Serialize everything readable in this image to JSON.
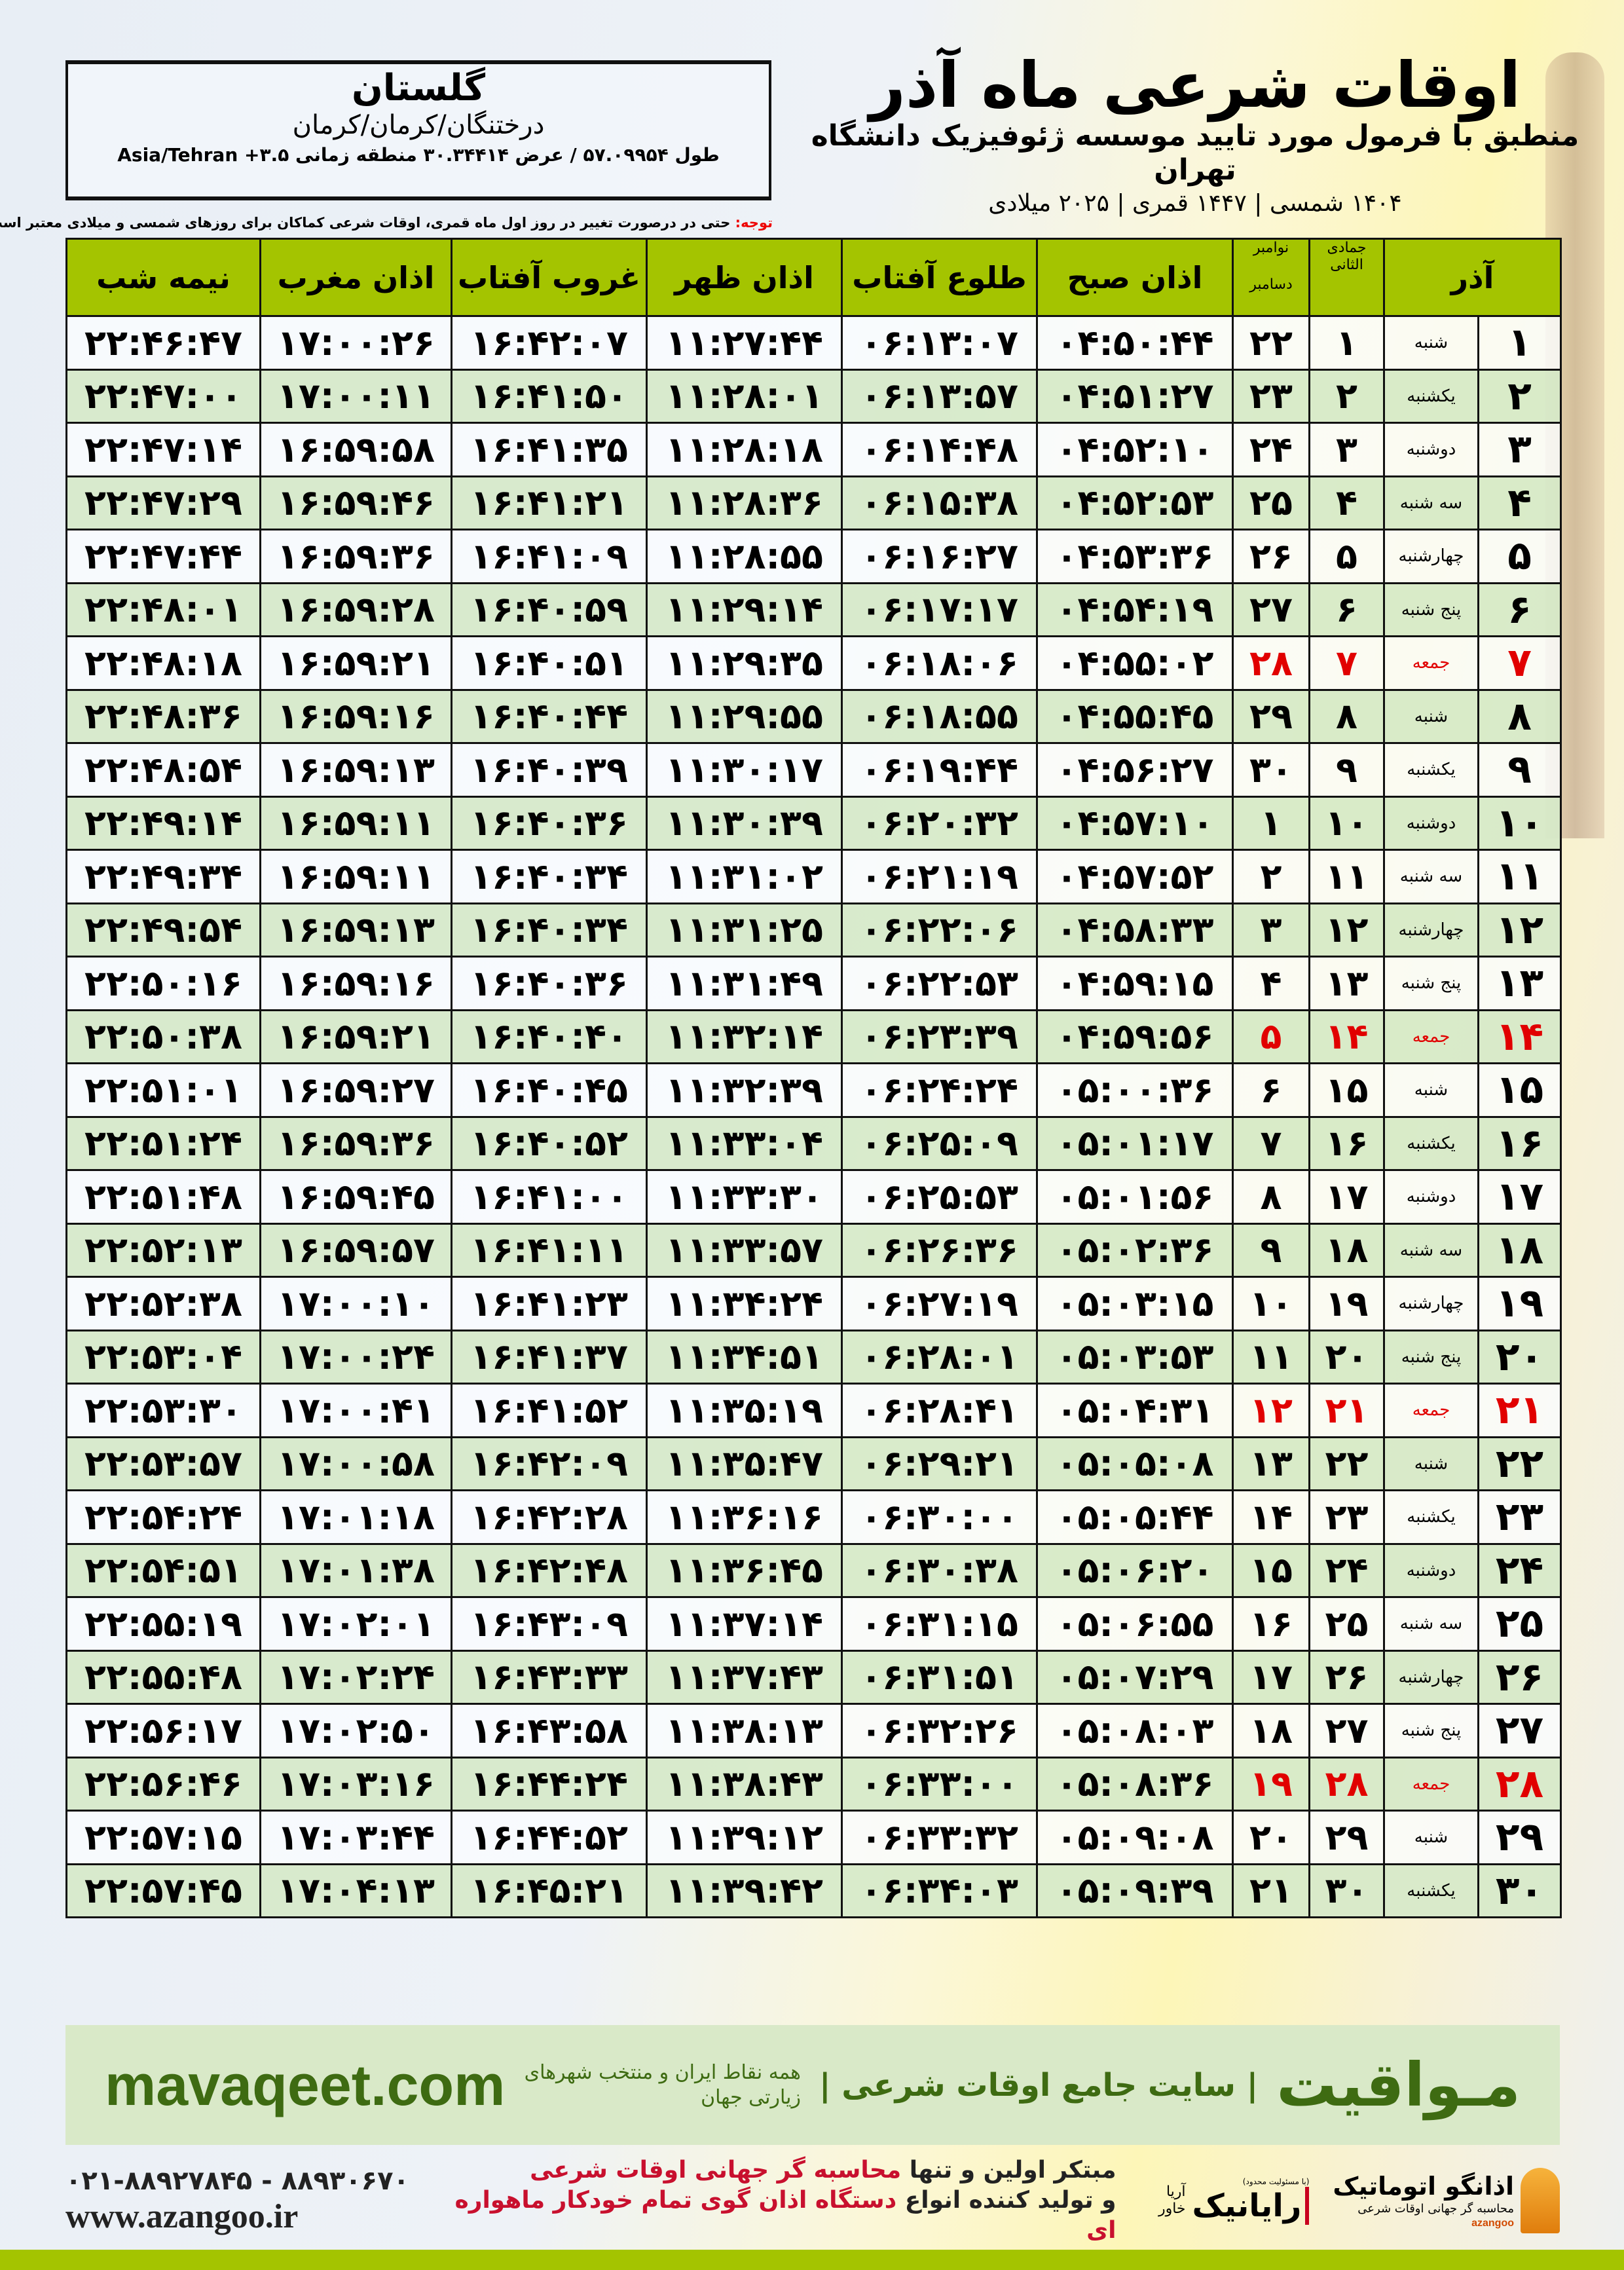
{
  "header": {
    "title": "اوقات شرعی ماه آذر",
    "subtitle": "منطبق با فرمول مورد تایید موسسه ژئوفیزیک دانشگاه تهران",
    "years": "۱۴۰۴ شمسی | ۱۴۴۷ قمری | ۲۰۲۵ میلادی"
  },
  "location": {
    "province": "گلستان",
    "cities": "درختنگان/کرمان/کرمان",
    "coords": "طول ۵۷.۰۹۹۵۴ / عرض ۳۰.۳۴۴۱۴ منطقه زمانی ۳.۵+ Asia/Tehran"
  },
  "note": {
    "label": "توجه:",
    "text": " حتی در درصورت تغییر در روز اول ماه قمری، اوقات شرعی کماکان برای روزهای شمسی و میلادی معتبر است."
  },
  "table": {
    "headers": {
      "month": "آذر",
      "hijri": "جمادی الثانی",
      "greg_top": "نوامبر",
      "greg_bottom": "دسامبر",
      "sobh": "اذان صبح",
      "tolu": "طلوع آفتاب",
      "zohr": "اذان ظهر",
      "ghorub": "غروب آفتاب",
      "maghreb": "اذان مغرب",
      "nime": "نیمه شب"
    },
    "friday_color": "#e10000",
    "header_color": "#a4c400",
    "rows": [
      {
        "d": "۱",
        "w": "شنبه",
        "h": "۱",
        "g": "۲۲",
        "t": [
          "۰۴:۵۰:۴۴",
          "۰۶:۱۳:۰۷",
          "۱۱:۲۷:۴۴",
          "۱۶:۴۲:۰۷",
          "۱۷:۰۰:۲۶",
          "۲۲:۴۶:۴۷"
        ]
      },
      {
        "d": "۲",
        "w": "یکشنبه",
        "h": "۲",
        "g": "۲۳",
        "t": [
          "۰۴:۵۱:۲۷",
          "۰۶:۱۳:۵۷",
          "۱۱:۲۸:۰۱",
          "۱۶:۴۱:۵۰",
          "۱۷:۰۰:۱۱",
          "۲۲:۴۷:۰۰"
        ]
      },
      {
        "d": "۳",
        "w": "دوشنبه",
        "h": "۳",
        "g": "۲۴",
        "t": [
          "۰۴:۵۲:۱۰",
          "۰۶:۱۴:۴۸",
          "۱۱:۲۸:۱۸",
          "۱۶:۴۱:۳۵",
          "۱۶:۵۹:۵۸",
          "۲۲:۴۷:۱۴"
        ]
      },
      {
        "d": "۴",
        "w": "سه شنبه",
        "h": "۴",
        "g": "۲۵",
        "t": [
          "۰۴:۵۲:۵۳",
          "۰۶:۱۵:۳۸",
          "۱۱:۲۸:۳۶",
          "۱۶:۴۱:۲۱",
          "۱۶:۵۹:۴۶",
          "۲۲:۴۷:۲۹"
        ]
      },
      {
        "d": "۵",
        "w": "چهارشنبه",
        "h": "۵",
        "g": "۲۶",
        "t": [
          "۰۴:۵۳:۳۶",
          "۰۶:۱۶:۲۷",
          "۱۱:۲۸:۵۵",
          "۱۶:۴۱:۰۹",
          "۱۶:۵۹:۳۶",
          "۲۲:۴۷:۴۴"
        ]
      },
      {
        "d": "۶",
        "w": "پنج شنبه",
        "h": "۶",
        "g": "۲۷",
        "t": [
          "۰۴:۵۴:۱۹",
          "۰۶:۱۷:۱۷",
          "۱۱:۲۹:۱۴",
          "۱۶:۴۰:۵۹",
          "۱۶:۵۹:۲۸",
          "۲۲:۴۸:۰۱"
        ]
      },
      {
        "d": "۷",
        "w": "جمعه",
        "h": "۷",
        "g": "۲۸",
        "fri": true,
        "t": [
          "۰۴:۵۵:۰۲",
          "۰۶:۱۸:۰۶",
          "۱۱:۲۹:۳۵",
          "۱۶:۴۰:۵۱",
          "۱۶:۵۹:۲۱",
          "۲۲:۴۸:۱۸"
        ]
      },
      {
        "d": "۸",
        "w": "شنبه",
        "h": "۸",
        "g": "۲۹",
        "t": [
          "۰۴:۵۵:۴۵",
          "۰۶:۱۸:۵۵",
          "۱۱:۲۹:۵۵",
          "۱۶:۴۰:۴۴",
          "۱۶:۵۹:۱۶",
          "۲۲:۴۸:۳۶"
        ]
      },
      {
        "d": "۹",
        "w": "یکشنبه",
        "h": "۹",
        "g": "۳۰",
        "t": [
          "۰۴:۵۶:۲۷",
          "۰۶:۱۹:۴۴",
          "۱۱:۳۰:۱۷",
          "۱۶:۴۰:۳۹",
          "۱۶:۵۹:۱۳",
          "۲۲:۴۸:۵۴"
        ]
      },
      {
        "d": "۱۰",
        "w": "دوشنبه",
        "h": "۱۰",
        "g": "۱",
        "t": [
          "۰۴:۵۷:۱۰",
          "۰۶:۲۰:۳۲",
          "۱۱:۳۰:۳۹",
          "۱۶:۴۰:۳۶",
          "۱۶:۵۹:۱۱",
          "۲۲:۴۹:۱۴"
        ]
      },
      {
        "d": "۱۱",
        "w": "سه شنبه",
        "h": "۱۱",
        "g": "۲",
        "t": [
          "۰۴:۵۷:۵۲",
          "۰۶:۲۱:۱۹",
          "۱۱:۳۱:۰۲",
          "۱۶:۴۰:۳۴",
          "۱۶:۵۹:۱۱",
          "۲۲:۴۹:۳۴"
        ]
      },
      {
        "d": "۱۲",
        "w": "چهارشنبه",
        "h": "۱۲",
        "g": "۳",
        "t": [
          "۰۴:۵۸:۳۳",
          "۰۶:۲۲:۰۶",
          "۱۱:۳۱:۲۵",
          "۱۶:۴۰:۳۴",
          "۱۶:۵۹:۱۳",
          "۲۲:۴۹:۵۴"
        ]
      },
      {
        "d": "۱۳",
        "w": "پنج شنبه",
        "h": "۱۳",
        "g": "۴",
        "t": [
          "۰۴:۵۹:۱۵",
          "۰۶:۲۲:۵۳",
          "۱۱:۳۱:۴۹",
          "۱۶:۴۰:۳۶",
          "۱۶:۵۹:۱۶",
          "۲۲:۵۰:۱۶"
        ]
      },
      {
        "d": "۱۴",
        "w": "جمعه",
        "h": "۱۴",
        "g": "۵",
        "fri": true,
        "t": [
          "۰۴:۵۹:۵۶",
          "۰۶:۲۳:۳۹",
          "۱۱:۳۲:۱۴",
          "۱۶:۴۰:۴۰",
          "۱۶:۵۹:۲۱",
          "۲۲:۵۰:۳۸"
        ]
      },
      {
        "d": "۱۵",
        "w": "شنبه",
        "h": "۱۵",
        "g": "۶",
        "t": [
          "۰۵:۰۰:۳۶",
          "۰۶:۲۴:۲۴",
          "۱۱:۳۲:۳۹",
          "۱۶:۴۰:۴۵",
          "۱۶:۵۹:۲۷",
          "۲۲:۵۱:۰۱"
        ]
      },
      {
        "d": "۱۶",
        "w": "یکشنبه",
        "h": "۱۶",
        "g": "۷",
        "t": [
          "۰۵:۰۱:۱۷",
          "۰۶:۲۵:۰۹",
          "۱۱:۳۳:۰۴",
          "۱۶:۴۰:۵۲",
          "۱۶:۵۹:۳۶",
          "۲۲:۵۱:۲۴"
        ]
      },
      {
        "d": "۱۷",
        "w": "دوشنبه",
        "h": "۱۷",
        "g": "۸",
        "t": [
          "۰۵:۰۱:۵۶",
          "۰۶:۲۵:۵۳",
          "۱۱:۳۳:۳۰",
          "۱۶:۴۱:۰۰",
          "۱۶:۵۹:۴۵",
          "۲۲:۵۱:۴۸"
        ]
      },
      {
        "d": "۱۸",
        "w": "سه شنبه",
        "h": "۱۸",
        "g": "۹",
        "t": [
          "۰۵:۰۲:۳۶",
          "۰۶:۲۶:۳۶",
          "۱۱:۳۳:۵۷",
          "۱۶:۴۱:۱۱",
          "۱۶:۵۹:۵۷",
          "۲۲:۵۲:۱۳"
        ]
      },
      {
        "d": "۱۹",
        "w": "چهارشنبه",
        "h": "۱۹",
        "g": "۱۰",
        "t": [
          "۰۵:۰۳:۱۵",
          "۰۶:۲۷:۱۹",
          "۱۱:۳۴:۲۴",
          "۱۶:۴۱:۲۳",
          "۱۷:۰۰:۱۰",
          "۲۲:۵۲:۳۸"
        ]
      },
      {
        "d": "۲۰",
        "w": "پنج شنبه",
        "h": "۲۰",
        "g": "۱۱",
        "t": [
          "۰۵:۰۳:۵۳",
          "۰۶:۲۸:۰۱",
          "۱۱:۳۴:۵۱",
          "۱۶:۴۱:۳۷",
          "۱۷:۰۰:۲۴",
          "۲۲:۵۳:۰۴"
        ]
      },
      {
        "d": "۲۱",
        "w": "جمعه",
        "h": "۲۱",
        "g": "۱۲",
        "fri": true,
        "t": [
          "۰۵:۰۴:۳۱",
          "۰۶:۲۸:۴۱",
          "۱۱:۳۵:۱۹",
          "۱۶:۴۱:۵۲",
          "۱۷:۰۰:۴۱",
          "۲۲:۵۳:۳۰"
        ]
      },
      {
        "d": "۲۲",
        "w": "شنبه",
        "h": "۲۲",
        "g": "۱۳",
        "t": [
          "۰۵:۰۵:۰۸",
          "۰۶:۲۹:۲۱",
          "۱۱:۳۵:۴۷",
          "۱۶:۴۲:۰۹",
          "۱۷:۰۰:۵۸",
          "۲۲:۵۳:۵۷"
        ]
      },
      {
        "d": "۲۳",
        "w": "یکشنبه",
        "h": "۲۳",
        "g": "۱۴",
        "t": [
          "۰۵:۰۵:۴۴",
          "۰۶:۳۰:۰۰",
          "۱۱:۳۶:۱۶",
          "۱۶:۴۲:۲۸",
          "۱۷:۰۱:۱۸",
          "۲۲:۵۴:۲۴"
        ]
      },
      {
        "d": "۲۴",
        "w": "دوشنبه",
        "h": "۲۴",
        "g": "۱۵",
        "t": [
          "۰۵:۰۶:۲۰",
          "۰۶:۳۰:۳۸",
          "۱۱:۳۶:۴۵",
          "۱۶:۴۲:۴۸",
          "۱۷:۰۱:۳۸",
          "۲۲:۵۴:۵۱"
        ]
      },
      {
        "d": "۲۵",
        "w": "سه شنبه",
        "h": "۲۵",
        "g": "۱۶",
        "t": [
          "۰۵:۰۶:۵۵",
          "۰۶:۳۱:۱۵",
          "۱۱:۳۷:۱۴",
          "۱۶:۴۳:۰۹",
          "۱۷:۰۲:۰۱",
          "۲۲:۵۵:۱۹"
        ]
      },
      {
        "d": "۲۶",
        "w": "چهارشنبه",
        "h": "۲۶",
        "g": "۱۷",
        "t": [
          "۰۵:۰۷:۲۹",
          "۰۶:۳۱:۵۱",
          "۱۱:۳۷:۴۳",
          "۱۶:۴۳:۳۳",
          "۱۷:۰۲:۲۴",
          "۲۲:۵۵:۴۸"
        ]
      },
      {
        "d": "۲۷",
        "w": "پنج شنبه",
        "h": "۲۷",
        "g": "۱۸",
        "t": [
          "۰۵:۰۸:۰۳",
          "۰۶:۳۲:۲۶",
          "۱۱:۳۸:۱۳",
          "۱۶:۴۳:۵۸",
          "۱۷:۰۲:۵۰",
          "۲۲:۵۶:۱۷"
        ]
      },
      {
        "d": "۲۸",
        "w": "جمعه",
        "h": "۲۸",
        "g": "۱۹",
        "fri": true,
        "t": [
          "۰۵:۰۸:۳۶",
          "۰۶:۳۳:۰۰",
          "۱۱:۳۸:۴۳",
          "۱۶:۴۴:۲۴",
          "۱۷:۰۳:۱۶",
          "۲۲:۵۶:۴۶"
        ]
      },
      {
        "d": "۲۹",
        "w": "شنبه",
        "h": "۲۹",
        "g": "۲۰",
        "t": [
          "۰۵:۰۹:۰۸",
          "۰۶:۳۳:۳۲",
          "۱۱:۳۹:۱۲",
          "۱۶:۴۴:۵۲",
          "۱۷:۰۳:۴۴",
          "۲۲:۵۷:۱۵"
        ]
      },
      {
        "d": "۳۰",
        "w": "یکشنبه",
        "h": "۳۰",
        "g": "۲۱",
        "t": [
          "۰۵:۰۹:۳۹",
          "۰۶:۳۴:۰۳",
          "۱۱:۳۹:۴۲",
          "۱۶:۴۵:۲۱",
          "۱۷:۰۴:۱۳",
          "۲۲:۵۷:۴۵"
        ]
      }
    ]
  },
  "footer": {
    "brand": "مـواقیت",
    "slogan": "| سایت جامع اوقات شرعی |",
    "desc": "همه نقاط ایران و منتخب شهرهای زیارتی جهان",
    "site": "mavaqeet.com"
  },
  "bottom": {
    "logo1_name": "اذانگو اتوماتیک",
    "logo1_tag": "محاسبه گر جهانی اوقات شرعی",
    "logo1_en": "azangoo",
    "logo2_name": "رایانیک",
    "logo2_sub": "آریا خاور",
    "logo2_tiny": "(با مسئولیت محدود)",
    "promo_1a": "مبتکر اولین و تنها ",
    "promo_1b": "محاسبه گر جهانی اوقات شرعی",
    "promo_2a": "و تولید کننده انواع ",
    "promo_2b": "دستگاه اذان گوی تمام خودکار ماهواره ای",
    "phone": "۰۲۱-۸۸۹۲۷۸۴۵ - ۸۸۹۳۰۶۷۰",
    "web": "www.azangoo.ir"
  }
}
